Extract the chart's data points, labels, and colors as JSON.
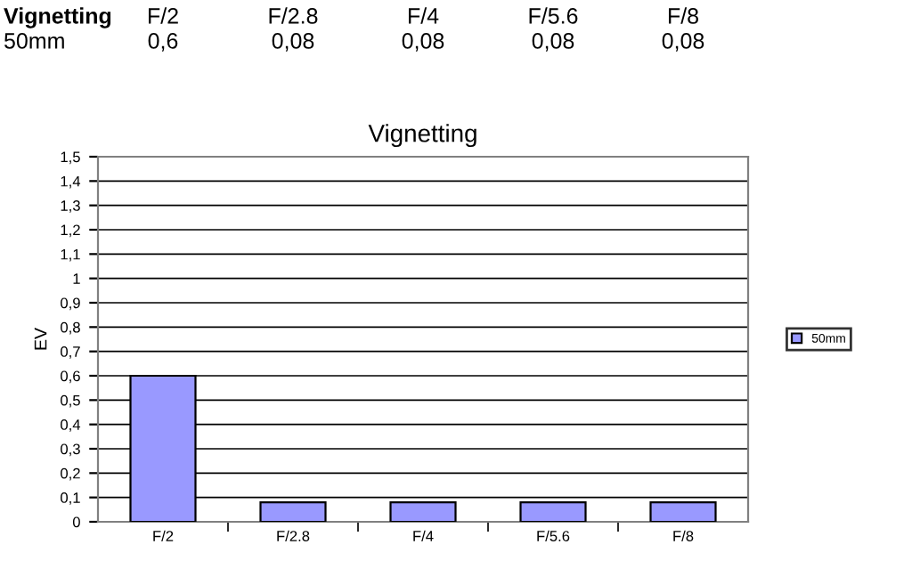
{
  "chart_data": {
    "type": "bar",
    "title": "Vignetting",
    "ylabel": "EV",
    "annotations": [
      "Vignetting"
    ],
    "categories": [
      "F/2",
      "F/2.8",
      "F/4",
      "F/5.6",
      "F/8"
    ],
    "series": [
      {
        "name": "50mm",
        "color": "#9999ff",
        "values": [
          0.6,
          0.08,
          0.08,
          0.08,
          0.08
        ],
        "value_labels": [
          "0,6",
          "0,08",
          "0,08",
          "0,08",
          "0,08"
        ]
      }
    ],
    "ylim": [
      0,
      1.5
    ],
    "yticks": [
      0,
      {
        "value": 0.1,
        "label": "0,1"
      },
      {
        "value": 0.2,
        "label": "0,2"
      },
      {
        "value": 0.3,
        "label": "0,3"
      },
      {
        "value": 0.4,
        "label": "0,4"
      },
      {
        "value": 0.5,
        "label": "0,5"
      },
      {
        "value": 0.6,
        "label": "0,6"
      },
      {
        "value": 0.7,
        "label": "0,7"
      },
      {
        "value": 0.8,
        "label": "0,8"
      },
      {
        "value": 0.9,
        "label": "0,9"
      },
      1,
      {
        "value": 1.1,
        "label": "1,1"
      },
      {
        "value": 1.2,
        "label": "1,2"
      },
      {
        "value": 1.3,
        "label": "1,3"
      },
      {
        "value": 1.4,
        "label": "1,4"
      },
      {
        "value": 1.5,
        "label": "1,5"
      }
    ],
    "grid": "y",
    "legend": "right"
  }
}
